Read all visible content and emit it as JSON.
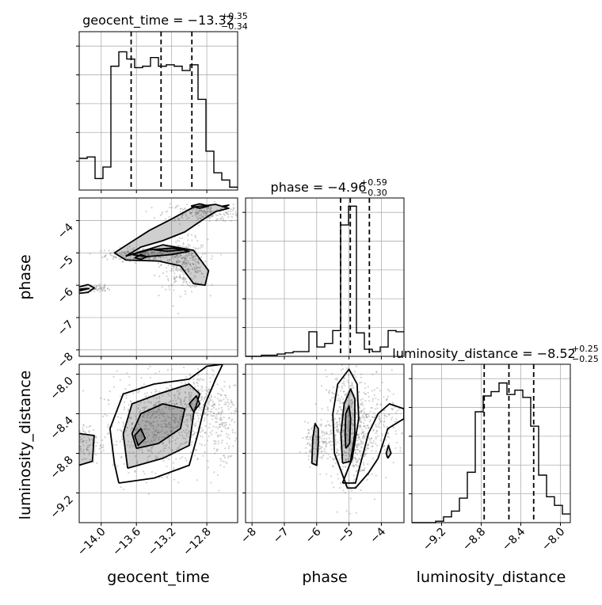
{
  "figure": {
    "type": "corner-plot",
    "parameters": [
      "geocent_time",
      "phase",
      "luminosity_distance"
    ]
  },
  "chart_data": [
    {
      "type": "bar",
      "panel": "hist-geocent_time",
      "title_param": "geocent_time",
      "title_value": "−13.32",
      "title_plus": "+0.35",
      "title_minus": "−0.34",
      "xlim": [
        -14.25,
        -12.45
      ],
      "ylim": [
        0,
        1.1
      ],
      "quantiles": [
        -13.66,
        -13.32,
        -12.97
      ],
      "bin_edges": [
        -14.25,
        -14.16,
        -14.07,
        -13.98,
        -13.89,
        -13.8,
        -13.71,
        -13.62,
        -13.53,
        -13.44,
        -13.35,
        -13.26,
        -13.17,
        -13.08,
        -12.99,
        -12.9,
        -12.81,
        -12.72,
        -12.63,
        -12.54,
        -12.45
      ],
      "values": [
        0.22,
        0.23,
        0.08,
        0.16,
        0.86,
        0.96,
        0.91,
        0.85,
        0.86,
        0.92,
        0.86,
        0.87,
        0.86,
        0.83,
        0.87,
        0.63,
        0.27,
        0.12,
        0.07,
        0.02
      ]
    },
    {
      "type": "bar",
      "panel": "hist-phase",
      "title_param": "phase",
      "title_value": "−4.96",
      "title_plus": "+0.59",
      "title_minus": "−0.30",
      "xlim": [
        -8.2,
        -3.3
      ],
      "ylim": [
        0,
        1.35
      ],
      "quantiles": [
        -5.26,
        -4.96,
        -4.37
      ],
      "bin_edges": [
        -8.2,
        -7.955,
        -7.71,
        -7.465,
        -7.22,
        -6.975,
        -6.73,
        -6.485,
        -6.24,
        -5.995,
        -5.75,
        -5.505,
        -5.26,
        -5.015,
        -4.77,
        -4.525,
        -4.28,
        -4.035,
        -3.79,
        -3.545,
        -3.3
      ],
      "values": [
        0,
        0,
        0.01,
        0.01,
        0.02,
        0.03,
        0.04,
        0.04,
        0.21,
        0.08,
        0.11,
        0.22,
        1.12,
        1.28,
        0.2,
        0.06,
        0.04,
        0.08,
        0.22,
        0.21
      ]
    },
    {
      "type": "bar",
      "panel": "hist-luminosity_distance",
      "title_param": "luminosity_distance",
      "title_value": "−8.52",
      "title_plus": "+0.25",
      "title_minus": "−0.25",
      "xlim": [
        -9.5,
        -7.9
      ],
      "ylim": [
        0,
        1.1
      ],
      "quantiles": [
        -8.77,
        -8.52,
        -8.27
      ],
      "bin_edges": [
        -9.5,
        -9.42,
        -9.34,
        -9.26,
        -9.18,
        -9.1,
        -9.02,
        -8.94,
        -8.86,
        -8.78,
        -8.7,
        -8.62,
        -8.54,
        -8.46,
        -8.38,
        -8.3,
        -8.22,
        -8.14,
        -8.06,
        -7.98,
        -7.9
      ],
      "values": [
        0,
        0,
        0,
        0.01,
        0.04,
        0.08,
        0.17,
        0.35,
        0.77,
        0.88,
        0.91,
        0.97,
        0.89,
        0.92,
        0.87,
        0.67,
        0.33,
        0.18,
        0.12,
        0.06
      ]
    },
    {
      "type": "scatter",
      "panel": "2d-geocent_time-phase",
      "x_param": "geocent_time",
      "y_param": "phase",
      "xlim": [
        -14.25,
        -12.45
      ],
      "ylim": [
        -8.2,
        -3.3
      ],
      "clusters": [
        {
          "x": -13.55,
          "y": -5.05,
          "sx": 0.2,
          "sy": 0.1,
          "n": 260
        },
        {
          "x": -13.05,
          "y": -5.35,
          "sx": 0.13,
          "sy": 0.38,
          "n": 320
        },
        {
          "x": -12.85,
          "y": -3.75,
          "sx": 0.22,
          "sy": 0.14,
          "n": 220
        },
        {
          "x": -14.1,
          "y": -6.1,
          "sx": 0.1,
          "sy": 0.06,
          "n": 80
        }
      ],
      "contours": [
        [
          [
            -14.25,
            -6.05
          ],
          [
            -14.15,
            -5.98
          ],
          [
            -14.08,
            -6.08
          ],
          [
            -14.15,
            -6.22
          ],
          [
            -14.25,
            -6.25
          ]
        ],
        [
          [
            -14.25,
            -6.12
          ],
          [
            -14.14,
            -6.1
          ],
          [
            -14.25,
            -6.18
          ]
        ],
        [
          [
            -13.72,
            -5.1
          ],
          [
            -13.55,
            -4.82
          ],
          [
            -13.3,
            -4.62
          ],
          [
            -13.05,
            -4.35
          ],
          [
            -12.85,
            -3.98
          ],
          [
            -12.7,
            -3.72
          ],
          [
            -12.55,
            -3.62
          ],
          [
            -12.7,
            -3.5
          ],
          [
            -12.95,
            -3.58
          ],
          [
            -13.2,
            -3.95
          ],
          [
            -13.45,
            -4.3
          ],
          [
            -13.68,
            -4.7
          ],
          [
            -13.85,
            -5.0
          ],
          [
            -13.72,
            -5.22
          ],
          [
            -13.35,
            -5.25
          ],
          [
            -13.1,
            -5.4
          ],
          [
            -12.95,
            -5.95
          ],
          [
            -12.82,
            -6.0
          ],
          [
            -12.78,
            -5.55
          ],
          [
            -12.95,
            -4.92
          ],
          [
            -13.3,
            -4.75
          ],
          [
            -13.72,
            -5.1
          ]
        ],
        [
          [
            -13.65,
            -5.05
          ],
          [
            -13.45,
            -4.9
          ],
          [
            -13.15,
            -4.85
          ],
          [
            -13.0,
            -4.95
          ],
          [
            -13.2,
            -5.05
          ],
          [
            -13.5,
            -5.12
          ],
          [
            -13.65,
            -5.05
          ]
        ],
        [
          [
            -13.62,
            -5.15
          ],
          [
            -13.55,
            -5.05
          ],
          [
            -13.48,
            -5.12
          ],
          [
            -13.55,
            -5.2
          ],
          [
            -13.62,
            -5.15
          ]
        ],
        [
          [
            -13.4,
            -4.9
          ],
          [
            -13.2,
            -4.85
          ],
          [
            -13.05,
            -4.9
          ],
          [
            -13.25,
            -4.95
          ],
          [
            -13.4,
            -4.9
          ]
        ],
        [
          [
            -12.98,
            -3.55
          ],
          [
            -12.88,
            -3.48
          ],
          [
            -12.78,
            -3.55
          ],
          [
            -12.88,
            -3.62
          ],
          [
            -12.98,
            -3.55
          ]
        ],
        [
          [
            -12.62,
            -3.55
          ],
          [
            -12.55,
            -3.52
          ],
          [
            -12.6,
            -3.58
          ],
          [
            -12.62,
            -3.55
          ]
        ]
      ]
    },
    {
      "type": "scatter",
      "panel": "2d-geocent_time-luminosity_distance",
      "x_param": "geocent_time",
      "y_param": "luminosity_distance",
      "xlim": [
        -14.25,
        -12.45
      ],
      "ylim": [
        -9.5,
        -7.9
      ],
      "clusters": [
        {
          "x": -13.3,
          "y": -8.52,
          "sx": 0.35,
          "sy": 0.22,
          "n": 700
        },
        {
          "x": -12.9,
          "y": -8.25,
          "sx": 0.18,
          "sy": 0.15,
          "n": 200
        },
        {
          "x": -14.15,
          "y": -8.7,
          "sx": 0.1,
          "sy": 0.1,
          "n": 90
        },
        {
          "x": -12.6,
          "y": -8.5,
          "sx": 0.1,
          "sy": 0.25,
          "n": 100
        }
      ],
      "contours": [
        [
          [
            -13.8,
            -9.1
          ],
          [
            -13.4,
            -9.05
          ],
          [
            -13.0,
            -8.92
          ],
          [
            -12.9,
            -8.6
          ],
          [
            -12.82,
            -8.3
          ],
          [
            -12.7,
            -8.05
          ],
          [
            -12.62,
            -7.9
          ],
          [
            -12.8,
            -7.92
          ],
          [
            -13.0,
            -8.05
          ],
          [
            -13.4,
            -8.1
          ],
          [
            -13.75,
            -8.2
          ],
          [
            -13.9,
            -8.55
          ],
          [
            -13.85,
            -8.9
          ],
          [
            -13.8,
            -9.1
          ]
        ],
        [
          [
            -13.7,
            -8.95
          ],
          [
            -13.3,
            -8.85
          ],
          [
            -13.0,
            -8.72
          ],
          [
            -12.95,
            -8.4
          ],
          [
            -12.88,
            -8.2
          ],
          [
            -13.0,
            -8.1
          ],
          [
            -13.35,
            -8.2
          ],
          [
            -13.65,
            -8.3
          ],
          [
            -13.75,
            -8.6
          ],
          [
            -13.7,
            -8.95
          ]
        ],
        [
          [
            -13.6,
            -8.75
          ],
          [
            -13.35,
            -8.7
          ],
          [
            -13.1,
            -8.55
          ],
          [
            -13.05,
            -8.35
          ],
          [
            -13.3,
            -8.3
          ],
          [
            -13.55,
            -8.4
          ],
          [
            -13.65,
            -8.6
          ],
          [
            -13.6,
            -8.75
          ]
        ],
        [
          [
            -14.25,
            -8.6
          ],
          [
            -14.08,
            -8.62
          ],
          [
            -14.1,
            -8.88
          ],
          [
            -14.25,
            -8.92
          ]
        ],
        [
          [
            -13.0,
            -8.3
          ],
          [
            -12.92,
            -8.22
          ],
          [
            -12.88,
            -8.3
          ],
          [
            -12.95,
            -8.38
          ],
          [
            -13.0,
            -8.3
          ]
        ],
        [
          [
            -13.62,
            -8.62
          ],
          [
            -13.55,
            -8.55
          ],
          [
            -13.5,
            -8.65
          ],
          [
            -13.58,
            -8.72
          ],
          [
            -13.62,
            -8.62
          ]
        ]
      ]
    },
    {
      "type": "scatter",
      "panel": "2d-phase-luminosity_distance",
      "x_param": "phase",
      "y_param": "luminosity_distance",
      "xlim": [
        -8.2,
        -3.3
      ],
      "ylim": [
        -9.5,
        -7.9
      ],
      "clusters": [
        {
          "x": -5.0,
          "y": -8.55,
          "sx": 0.35,
          "sy": 0.28,
          "n": 650
        },
        {
          "x": -6.0,
          "y": -8.7,
          "sx": 0.18,
          "sy": 0.1,
          "n": 130
        },
        {
          "x": -4.0,
          "y": -8.5,
          "sx": 0.4,
          "sy": 0.2,
          "n": 160
        }
      ],
      "contours": [
        [
          [
            -5.2,
            -9.1
          ],
          [
            -4.8,
            -9.1
          ],
          [
            -4.4,
            -8.6
          ],
          [
            -4.1,
            -8.4
          ],
          [
            -3.75,
            -8.3
          ],
          [
            -3.3,
            -8.35
          ],
          [
            -3.3,
            -8.45
          ],
          [
            -3.8,
            -8.55
          ],
          [
            -4.1,
            -8.85
          ],
          [
            -4.4,
            -9.0
          ],
          [
            -4.8,
            -9.15
          ],
          [
            -5.05,
            -9.15
          ],
          [
            -5.45,
            -8.8
          ],
          [
            -5.5,
            -8.4
          ],
          [
            -5.35,
            -8.1
          ],
          [
            -5.0,
            -7.95
          ],
          [
            -4.75,
            -8.1
          ],
          [
            -4.7,
            -8.45
          ],
          [
            -4.9,
            -8.85
          ],
          [
            -5.2,
            -9.1
          ]
        ],
        [
          [
            -5.2,
            -8.9
          ],
          [
            -4.95,
            -8.88
          ],
          [
            -4.82,
            -8.6
          ],
          [
            -4.82,
            -8.25
          ],
          [
            -4.95,
            -8.15
          ],
          [
            -5.15,
            -8.3
          ],
          [
            -5.25,
            -8.6
          ],
          [
            -5.2,
            -8.9
          ]
        ],
        [
          [
            -5.1,
            -8.75
          ],
          [
            -4.98,
            -8.7
          ],
          [
            -4.95,
            -8.45
          ],
          [
            -5.0,
            -8.32
          ],
          [
            -5.1,
            -8.4
          ],
          [
            -5.12,
            -8.6
          ],
          [
            -5.1,
            -8.75
          ]
        ],
        [
          [
            -6.15,
            -8.9
          ],
          [
            -6.0,
            -8.92
          ],
          [
            -5.95,
            -8.7
          ],
          [
            -5.95,
            -8.55
          ],
          [
            -6.05,
            -8.5
          ],
          [
            -6.12,
            -8.65
          ],
          [
            -6.15,
            -8.9
          ]
        ],
        [
          [
            -3.8,
            -8.85
          ],
          [
            -3.7,
            -8.8
          ],
          [
            -3.78,
            -8.72
          ],
          [
            -3.85,
            -8.8
          ],
          [
            -3.8,
            -8.85
          ]
        ]
      ]
    }
  ],
  "axes": {
    "geocent_time": {
      "label": "geocent_time",
      "ticks": [
        -14.0,
        -13.6,
        -13.2,
        -12.8
      ],
      "tick_labels": [
        "−14.0",
        "−13.6",
        "−13.2",
        "−12.8"
      ]
    },
    "phase_x": {
      "label": "phase",
      "ticks": [
        -8,
        -7,
        -6,
        -5,
        -4
      ],
      "tick_labels": [
        "−8",
        "−7",
        "−6",
        "−5",
        "−4"
      ]
    },
    "phase_y": {
      "label": "phase",
      "ticks": [
        -8,
        -7,
        -6,
        -5,
        -4
      ],
      "tick_labels": [
        "−8",
        "−7",
        "−6",
        "−5",
        "−4"
      ]
    },
    "luminosity_distance_x": {
      "label": "luminosity_distance",
      "ticks": [
        -9.2,
        -8.8,
        -8.4,
        -8.0
      ],
      "tick_labels": [
        "−9.2",
        "−8.8",
        "−8.4",
        "−8.0"
      ]
    },
    "luminosity_distance_y": {
      "label": "luminosity_distance",
      "ticks": [
        -9.2,
        -8.8,
        -8.4,
        -8.0
      ],
      "tick_labels": [
        "−9.2",
        "−8.8",
        "−8.4",
        "−8.0"
      ]
    }
  },
  "style": {
    "line_color": "#000000",
    "grid_color": "#b0b0b0",
    "scatter_color": "#808080",
    "fill_color": "#404040"
  }
}
